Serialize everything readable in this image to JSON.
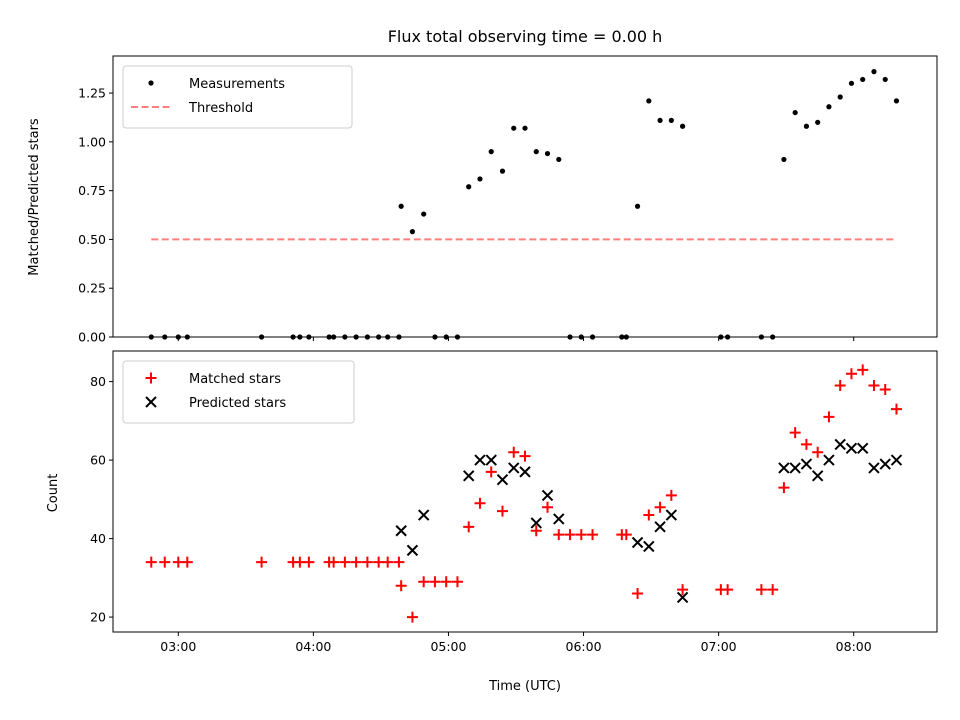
{
  "chart_data": [
    {
      "type": "scatter",
      "title": "Flux total observing time = 0.00 h",
      "xlabel": "",
      "ylabel": "Matched/Predicted stars",
      "xlim": [
        "02:31",
        "08:37"
      ],
      "ylim": [
        0.0,
        1.44
      ],
      "y_ticks": [
        "0.00",
        "0.25",
        "0.50",
        "0.75",
        "1.00",
        "1.25"
      ],
      "x_ticks": [
        "03:00",
        "04:00",
        "05:00",
        "06:00",
        "07:00",
        "08:00"
      ],
      "show_x_tick_labels": false,
      "legend_position": "top-left",
      "series": [
        {
          "name": "Measurements",
          "marker": "dot",
          "color": "#000000",
          "points": [
            [
              "02:48",
              0
            ],
            [
              "02:54",
              0
            ],
            [
              "03:00",
              0
            ],
            [
              "03:04",
              0
            ],
            [
              "03:37",
              0
            ],
            [
              "03:51",
              0
            ],
            [
              "03:54",
              0
            ],
            [
              "03:58",
              0
            ],
            [
              "04:07",
              0
            ],
            [
              "04:09",
              0
            ],
            [
              "04:14",
              0
            ],
            [
              "04:19",
              0
            ],
            [
              "04:24",
              0
            ],
            [
              "04:29",
              0
            ],
            [
              "04:33",
              0
            ],
            [
              "04:38",
              0
            ],
            [
              "04:39",
              0.67
            ],
            [
              "04:44",
              0.54
            ],
            [
              "04:49",
              0.63
            ],
            [
              "04:54",
              0
            ],
            [
              "04:59",
              0
            ],
            [
              "05:04",
              0
            ],
            [
              "05:09",
              0.77
            ],
            [
              "05:14",
              0.81
            ],
            [
              "05:19",
              0.95
            ],
            [
              "05:24",
              0.85
            ],
            [
              "05:29",
              1.07
            ],
            [
              "05:34",
              1.07
            ],
            [
              "05:39",
              0.95
            ],
            [
              "05:44",
              0.94
            ],
            [
              "05:49",
              0.91
            ],
            [
              "05:54",
              0
            ],
            [
              "05:59",
              0
            ],
            [
              "06:04",
              0
            ],
            [
              "06:17",
              0
            ],
            [
              "06:19",
              0
            ],
            [
              "06:24",
              0.67
            ],
            [
              "06:29",
              1.21
            ],
            [
              "06:34",
              1.11
            ],
            [
              "06:39",
              1.11
            ],
            [
              "06:44",
              1.08
            ],
            [
              "07:01",
              0
            ],
            [
              "07:04",
              0
            ],
            [
              "07:19",
              0
            ],
            [
              "07:24",
              0
            ],
            [
              "07:29",
              0.91
            ],
            [
              "07:34",
              1.15
            ],
            [
              "07:39",
              1.08
            ],
            [
              "07:44",
              1.1
            ],
            [
              "07:49",
              1.18
            ],
            [
              "07:54",
              1.23
            ],
            [
              "07:59",
              1.3
            ],
            [
              "08:04",
              1.32
            ],
            [
              "08:09",
              1.36
            ],
            [
              "08:14",
              1.32
            ],
            [
              "08:19",
              1.21
            ]
          ]
        },
        {
          "name": "Threshold",
          "style": "dashed",
          "color": "#ff7f7f",
          "points": [
            [
              "02:48",
              0.5
            ],
            [
              "08:19",
              0.5
            ]
          ]
        }
      ]
    },
    {
      "type": "scatter",
      "title": "",
      "xlabel": "Time (UTC)",
      "ylabel": "Count",
      "xlim": [
        "02:31",
        "08:37"
      ],
      "ylim": [
        16.2,
        87.8
      ],
      "y_ticks": [
        "20",
        "40",
        "60",
        "80"
      ],
      "x_ticks": [
        "03:00",
        "04:00",
        "05:00",
        "06:00",
        "07:00",
        "08:00"
      ],
      "show_x_tick_labels": true,
      "legend_position": "top-left",
      "series": [
        {
          "name": "Matched stars",
          "marker": "plus",
          "color": "#ff0000",
          "points": [
            [
              "02:48",
              34
            ],
            [
              "02:54",
              34
            ],
            [
              "03:00",
              34
            ],
            [
              "03:04",
              34
            ],
            [
              "03:37",
              34
            ],
            [
              "03:51",
              34
            ],
            [
              "03:54",
              34
            ],
            [
              "03:58",
              34
            ],
            [
              "04:07",
              34
            ],
            [
              "04:09",
              34
            ],
            [
              "04:14",
              34
            ],
            [
              "04:19",
              34
            ],
            [
              "04:24",
              34
            ],
            [
              "04:29",
              34
            ],
            [
              "04:33",
              34
            ],
            [
              "04:38",
              34
            ],
            [
              "04:39",
              28
            ],
            [
              "04:44",
              20
            ],
            [
              "04:49",
              29
            ],
            [
              "04:54",
              29
            ],
            [
              "04:59",
              29
            ],
            [
              "05:04",
              29
            ],
            [
              "05:09",
              43
            ],
            [
              "05:14",
              49
            ],
            [
              "05:19",
              57
            ],
            [
              "05:24",
              47
            ],
            [
              "05:29",
              62
            ],
            [
              "05:34",
              61
            ],
            [
              "05:39",
              42
            ],
            [
              "05:44",
              48
            ],
            [
              "05:49",
              41
            ],
            [
              "05:54",
              41
            ],
            [
              "05:59",
              41
            ],
            [
              "06:04",
              41
            ],
            [
              "06:17",
              41
            ],
            [
              "06:19",
              41
            ],
            [
              "06:24",
              26
            ],
            [
              "06:29",
              46
            ],
            [
              "06:34",
              48
            ],
            [
              "06:39",
              51
            ],
            [
              "06:44",
              27
            ],
            [
              "07:01",
              27
            ],
            [
              "07:04",
              27
            ],
            [
              "07:19",
              27
            ],
            [
              "07:24",
              27
            ],
            [
              "07:29",
              53
            ],
            [
              "07:34",
              67
            ],
            [
              "07:39",
              64
            ],
            [
              "07:44",
              62
            ],
            [
              "07:49",
              71
            ],
            [
              "07:54",
              79
            ],
            [
              "07:59",
              82
            ],
            [
              "08:04",
              83
            ],
            [
              "08:09",
              79
            ],
            [
              "08:14",
              78
            ],
            [
              "08:19",
              73
            ]
          ]
        },
        {
          "name": "Predicted stars",
          "marker": "x",
          "color": "#000000",
          "points": [
            [
              "04:39",
              42
            ],
            [
              "04:44",
              37
            ],
            [
              "04:49",
              46
            ],
            [
              "05:09",
              56
            ],
            [
              "05:14",
              60
            ],
            [
              "05:19",
              60
            ],
            [
              "05:24",
              55
            ],
            [
              "05:29",
              58
            ],
            [
              "05:34",
              57
            ],
            [
              "05:39",
              44
            ],
            [
              "05:44",
              51
            ],
            [
              "05:49",
              45
            ],
            [
              "06:24",
              39
            ],
            [
              "06:29",
              38
            ],
            [
              "06:34",
              43
            ],
            [
              "06:39",
              46
            ],
            [
              "06:44",
              25
            ],
            [
              "07:29",
              58
            ],
            [
              "07:34",
              58
            ],
            [
              "07:39",
              59
            ],
            [
              "07:44",
              56
            ],
            [
              "07:49",
              60
            ],
            [
              "07:54",
              64
            ],
            [
              "07:59",
              63
            ],
            [
              "08:04",
              63
            ],
            [
              "08:09",
              58
            ],
            [
              "08:14",
              59
            ],
            [
              "08:19",
              60
            ]
          ]
        }
      ]
    }
  ]
}
